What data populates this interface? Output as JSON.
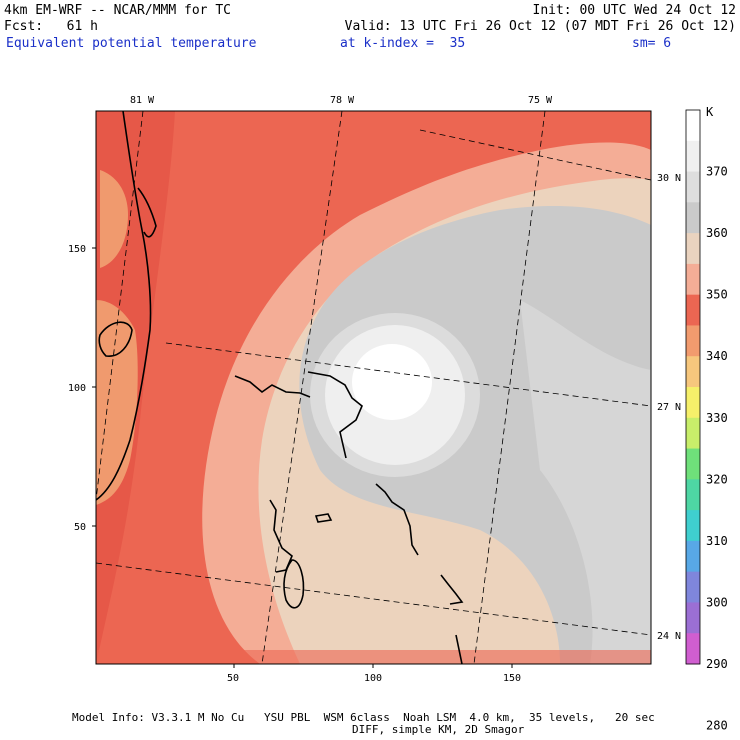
{
  "header": {
    "model_title": "4km EM-WRF -- NCAR/MMM for TC",
    "init": "Init: 00 UTC Wed 24 Oct 12",
    "forecast": "Fcst:   61 h",
    "valid": "Valid: 13 UTC Fri 26 Oct 12 (07 MDT Fri 26 Oct 12)",
    "field": "Equivalent potential temperature",
    "level": "at k-index =  35",
    "smoothing": "sm= 6"
  },
  "map": {
    "lon_labels": [
      "81 W",
      "78 W",
      "75 W"
    ],
    "lat_labels": [
      "30 N",
      "27 N",
      "24 N"
    ],
    "x_ticks": [
      "50",
      "100",
      "150"
    ],
    "y_ticks": [
      "150",
      "100",
      "50"
    ],
    "shading_colors": {
      "gt370": "#ffffff",
      "c365": "#efefef",
      "c360": "#dcdcdc",
      "c355": "#cacaca",
      "c350": "#ecd3bd",
      "c345": "#f4ad96",
      "c340": "#ec6652",
      "c335": "#f09a6e"
    }
  },
  "colorbar": {
    "unit": "K",
    "labels": [
      "370",
      "360",
      "350",
      "340",
      "330",
      "320",
      "310",
      "300",
      "290",
      "280"
    ],
    "colors": [
      "#ffffff",
      "#f0f0f0",
      "#dedede",
      "#cacaca",
      "#ead3bf",
      "#f4ad96",
      "#ec6652",
      "#f29b6e",
      "#f7c77d",
      "#f6f06a",
      "#c8ee6a",
      "#6fe07a",
      "#4ed6a4",
      "#3fcfcf",
      "#58a8e6",
      "#7f86dc",
      "#9b6fd4",
      "#d05ed0"
    ]
  },
  "footer": {
    "line1": "Model Info: V3.3.1 M No Cu   YSU PBL  WSM 6class  Noah LSM  4.0 km,  35 levels,   20 sec",
    "line2": "DIFF, simple KM, 2D Smagor"
  }
}
